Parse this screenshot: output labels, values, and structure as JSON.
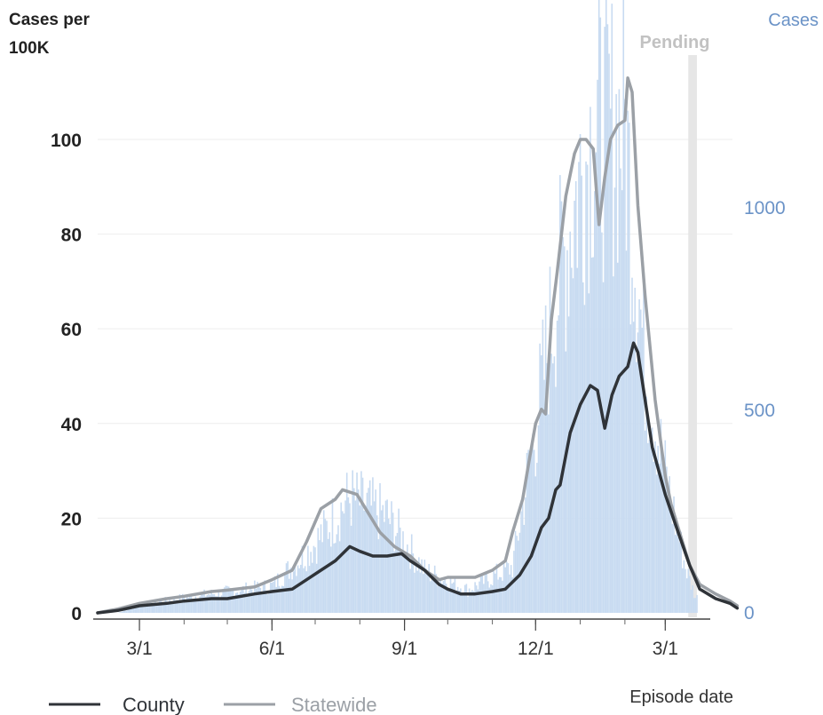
{
  "chart_data": {
    "type": "line",
    "title_left": "Cases per",
    "title_left_2": "100K",
    "title_right": "Cases",
    "pending_label": "Pending",
    "xlabel": "Episode date",
    "x_ticks": [
      "3/1",
      "6/1",
      "9/1",
      "12/1",
      "3/1"
    ],
    "x_tick_dates": [
      "2020-03-01",
      "2020-06-01",
      "2020-09-01",
      "2020-12-01",
      "2021-03-01"
    ],
    "x_start": "2020-02-01",
    "x_end": "2021-03-23",
    "pending_start": "2021-03-17",
    "left_axis": {
      "ylim": [
        0,
        115
      ],
      "ticks": [
        0,
        20,
        40,
        60,
        80,
        100
      ]
    },
    "right_axis": {
      "ylim": [
        0,
        1345
      ],
      "ticks": [
        0,
        500,
        1000
      ]
    },
    "series": [
      {
        "name": "County",
        "color": "#2f3338",
        "points": [
          [
            "2020-02-01",
            0
          ],
          [
            "2020-02-15",
            0.5
          ],
          [
            "2020-03-01",
            1.5
          ],
          [
            "2020-03-20",
            2
          ],
          [
            "2020-04-01",
            2.5
          ],
          [
            "2020-04-20",
            3
          ],
          [
            "2020-05-01",
            3
          ],
          [
            "2020-05-20",
            4
          ],
          [
            "2020-06-01",
            4.5
          ],
          [
            "2020-06-15",
            5
          ],
          [
            "2020-06-25",
            7
          ],
          [
            "2020-07-05",
            9
          ],
          [
            "2020-07-15",
            11
          ],
          [
            "2020-07-25",
            14
          ],
          [
            "2020-08-01",
            13
          ],
          [
            "2020-08-10",
            12
          ],
          [
            "2020-08-20",
            12
          ],
          [
            "2020-08-30",
            12.5
          ],
          [
            "2020-09-05",
            11
          ],
          [
            "2020-09-15",
            9
          ],
          [
            "2020-09-25",
            6
          ],
          [
            "2020-10-01",
            5
          ],
          [
            "2020-10-10",
            4
          ],
          [
            "2020-10-20",
            4
          ],
          [
            "2020-11-01",
            4.5
          ],
          [
            "2020-11-10",
            5
          ],
          [
            "2020-11-20",
            8
          ],
          [
            "2020-11-28",
            12
          ],
          [
            "2020-12-05",
            18
          ],
          [
            "2020-12-10",
            20
          ],
          [
            "2020-12-15",
            26
          ],
          [
            "2020-12-18",
            27
          ],
          [
            "2020-12-25",
            38
          ],
          [
            "2021-01-01",
            44
          ],
          [
            "2021-01-08",
            48
          ],
          [
            "2021-01-13",
            47
          ],
          [
            "2021-01-18",
            39
          ],
          [
            "2021-01-23",
            46
          ],
          [
            "2021-01-28",
            50
          ],
          [
            "2021-02-03",
            52
          ],
          [
            "2021-02-07",
            57
          ],
          [
            "2021-02-10",
            55
          ],
          [
            "2021-02-15",
            45
          ],
          [
            "2021-02-20",
            35
          ],
          [
            "2021-03-01",
            25
          ],
          [
            "2021-03-10",
            17
          ],
          [
            "2021-03-18",
            10
          ],
          [
            "2021-03-25",
            5
          ],
          [
            "2021-04-05",
            3
          ],
          [
            "2021-04-15",
            2
          ],
          [
            "2021-04-20",
            1
          ]
        ]
      },
      {
        "name": "Statewide",
        "color": "#9ba0a6",
        "points": [
          [
            "2020-02-01",
            0
          ],
          [
            "2020-02-15",
            0.8
          ],
          [
            "2020-03-01",
            2
          ],
          [
            "2020-03-20",
            3
          ],
          [
            "2020-04-01",
            3.5
          ],
          [
            "2020-04-20",
            4.5
          ],
          [
            "2020-05-01",
            4.8
          ],
          [
            "2020-05-20",
            5.5
          ],
          [
            "2020-06-01",
            7
          ],
          [
            "2020-06-15",
            9
          ],
          [
            "2020-06-25",
            15
          ],
          [
            "2020-07-05",
            22
          ],
          [
            "2020-07-10",
            23
          ],
          [
            "2020-07-15",
            24
          ],
          [
            "2020-07-20",
            26
          ],
          [
            "2020-07-30",
            25
          ],
          [
            "2020-08-05",
            22
          ],
          [
            "2020-08-15",
            17
          ],
          [
            "2020-08-25",
            14
          ],
          [
            "2020-09-05",
            12
          ],
          [
            "2020-09-15",
            9
          ],
          [
            "2020-09-25",
            7
          ],
          [
            "2020-10-01",
            7.5
          ],
          [
            "2020-10-10",
            7.5
          ],
          [
            "2020-10-20",
            7.5
          ],
          [
            "2020-11-01",
            9
          ],
          [
            "2020-11-10",
            11
          ],
          [
            "2020-11-15",
            17
          ],
          [
            "2020-11-22",
            24
          ],
          [
            "2020-11-27",
            33
          ],
          [
            "2020-12-01",
            40
          ],
          [
            "2020-12-05",
            43
          ],
          [
            "2020-12-08",
            42
          ],
          [
            "2020-12-12",
            62
          ],
          [
            "2020-12-16",
            72
          ],
          [
            "2020-12-22",
            88
          ],
          [
            "2020-12-28",
            97
          ],
          [
            "2021-01-01",
            100
          ],
          [
            "2021-01-05",
            100
          ],
          [
            "2021-01-10",
            98
          ],
          [
            "2021-01-14",
            82
          ],
          [
            "2021-01-18",
            92
          ],
          [
            "2021-01-22",
            100
          ],
          [
            "2021-01-27",
            103
          ],
          [
            "2021-02-01",
            104
          ],
          [
            "2021-02-03",
            113
          ],
          [
            "2021-02-06",
            110
          ],
          [
            "2021-02-10",
            86
          ],
          [
            "2021-02-15",
            67
          ],
          [
            "2021-02-22",
            45
          ],
          [
            "2021-03-01",
            29
          ],
          [
            "2021-03-05",
            23
          ],
          [
            "2021-03-10",
            18
          ],
          [
            "2021-03-18",
            10
          ],
          [
            "2021-03-25",
            6
          ],
          [
            "2021-04-05",
            4
          ],
          [
            "2021-04-15",
            2.5
          ],
          [
            "2021-04-20",
            1.5
          ]
        ]
      }
    ],
    "bars": {
      "name": "Cases",
      "axis": "right",
      "color": "#c8dbf1",
      "values": [
        {
          "date": "2020-03-01",
          "v": 20
        },
        {
          "date": "2020-04-01",
          "v": 40
        },
        {
          "date": "2020-05-01",
          "v": 55
        },
        {
          "date": "2020-06-01",
          "v": 70
        },
        {
          "date": "2020-07-01",
          "v": 180
        },
        {
          "date": "2020-07-25",
          "v": 300
        },
        {
          "date": "2020-08-20",
          "v": 250
        },
        {
          "date": "2020-09-15",
          "v": 110
        },
        {
          "date": "2020-10-15",
          "v": 60
        },
        {
          "date": "2020-11-15",
          "v": 120
        },
        {
          "date": "2020-12-01",
          "v": 480
        },
        {
          "date": "2020-12-15",
          "v": 820
        },
        {
          "date": "2021-01-01",
          "v": 1130
        },
        {
          "date": "2021-01-10",
          "v": 1250
        },
        {
          "date": "2021-02-01",
          "v": 1260
        },
        {
          "date": "2021-02-15",
          "v": 640
        },
        {
          "date": "2021-03-01",
          "v": 360
        },
        {
          "date": "2021-03-15",
          "v": 120
        },
        {
          "date": "2021-03-22",
          "v": 40
        }
      ]
    },
    "grid": true,
    "legend": "bottom-left"
  }
}
